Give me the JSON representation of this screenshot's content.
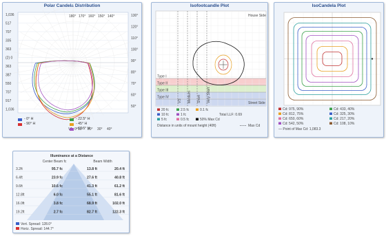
{
  "polar": {
    "title": "Polar Candela Distribution",
    "top_angle_labels": [
      "180°",
      "170°",
      "160°",
      "150°",
      "140°"
    ],
    "left_labels": [
      "1,036",
      "517",
      "707",
      "335",
      "363",
      "(2) 0",
      "363",
      "387",
      "550",
      "707",
      "917",
      "1,036"
    ],
    "right_labels": [
      "130°",
      "120°",
      "110°",
      "100°",
      "90°",
      "80°",
      "70°",
      "60°",
      "50°"
    ],
    "bottom_angles": [
      "VA: 0°",
      "10°",
      "20°",
      "30°",
      "40°"
    ],
    "legend": [
      {
        "label": "- 0° H",
        "color": "#3a5fc8"
      },
      {
        "label": "- 90° H",
        "color": "#d83030"
      },
      {
        "label": "- 22.5° H",
        "color": "#3aa04a"
      },
      {
        "label": "- 45° H",
        "color": "#e8a020"
      },
      {
        "label": "- 67.5° H",
        "color": "#a050c0"
      }
    ]
  },
  "isofootcandle": {
    "title": "Isofootcandle Plot",
    "house_side": "House Side",
    "street_side": "Street Side",
    "types": [
      "Type I",
      "Type II",
      "Type III",
      "Type IV"
    ],
    "vertical_labels": [
      "VS",
      "Medium",
      "Short",
      "Very Short"
    ],
    "legend": [
      {
        "label": "20 fc",
        "color": "#c03030"
      },
      {
        "label": "2.5 fc",
        "color": "#3aa04a"
      },
      {
        "label": "0.1 fc",
        "color": "#e8a020"
      },
      {
        "label": "10 fc",
        "color": "#3a5fc8"
      },
      {
        "label": "1 fc",
        "color": "#a050c0"
      },
      {
        "label": "5 fc",
        "color": "#2aa0a0"
      },
      {
        "label": "0.5 fc",
        "color": "#e070a0"
      },
      {
        "label": "50% Max Cd",
        "color": "#111111"
      }
    ],
    "total_llf": "Total LLF: 0.69",
    "footer": "Distance in units of mount height (40ft)",
    "max_cd": "Max Cd"
  },
  "isocandela": {
    "title": "IsoCandela Plot",
    "legend": [
      {
        "label": "Cd: 975, 90%",
        "color": "#c03030"
      },
      {
        "label": "Cd: 433, 40%",
        "color": "#3aa04a"
      },
      {
        "label": "Cd: 812, 75%",
        "color": "#e8a020"
      },
      {
        "label": "Cd: 325, 30%",
        "color": "#3a5fc8"
      },
      {
        "label": "Cd: 650, 60%",
        "color": "#e070a0"
      },
      {
        "label": "Cd: 217, 20%",
        "color": "#2aa0a0"
      },
      {
        "label": "Cd: 542, 50%",
        "color": "#a050c0"
      },
      {
        "label": "Cd: 108, 10%",
        "color": "#8a5a30"
      }
    ],
    "max_point": "Point of Max Cd: 1,083.3"
  },
  "illuminance": {
    "title": "Illuminance at a Distance",
    "col_center": "Center Beam fc",
    "col_width": "Beam Width",
    "distances": [
      "3.2ft",
      "6.4ft",
      "9.6ft",
      "12.8ft",
      "16.0ft",
      "19.2ft"
    ],
    "center_fc": [
      "95.7 fc",
      "23.9 fc",
      "10.6 fc",
      "6.0 fc",
      "3.8 fc",
      "2.7 fc"
    ],
    "width_v": [
      "13.8 ft",
      "27.6 ft",
      "41.3 ft",
      "55.1 ft",
      "68.9 ft",
      "82.7 ft"
    ],
    "width_h": [
      "20.4 ft",
      "40.8 ft",
      "61.2 ft",
      "81.6 ft",
      "102.0 ft",
      "122.3 ft"
    ],
    "vert_spread": "Vert. Spread: 128.0°",
    "horiz_spread": "Horiz. Spread: 144.7°",
    "vert_color": "#3a5fc8",
    "horiz_color": "#d83030"
  }
}
